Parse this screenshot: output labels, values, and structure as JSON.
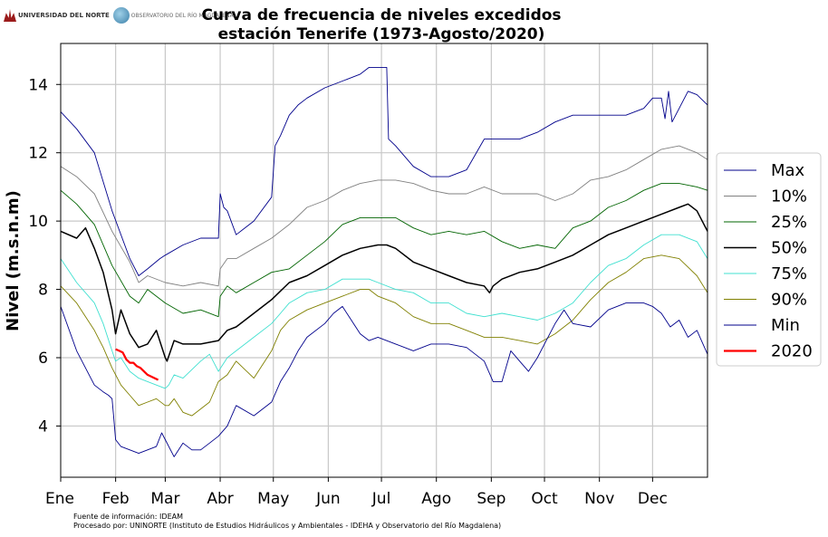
{
  "logos": {
    "university": "UNIVERSIDAD DEL NORTE",
    "observatory": "OBSERVATORIO DEL RÍO MAGDALENA"
  },
  "footnote": {
    "line1": "Fuente de información: IDEAM",
    "line2": "Procesado por: UNINORTE (Instituto de Estudios Hidráulicos y Ambientales - IDEHA y Observatorio del Río Magdalena)"
  },
  "chart_data": {
    "type": "line",
    "title": "Curva de frecuencia de niveles excedidos",
    "subtitle": "estación Tenerife (1973-Agosto/2020)",
    "xlabel": "",
    "ylabel": "Nivel (m.s.n.m)",
    "x_unit": "day of year",
    "xlim": [
      1,
      366
    ],
    "ylim": [
      2.5,
      15.2
    ],
    "xticks": [
      {
        "label": "Ene",
        "x": 1
      },
      {
        "label": "Feb",
        "x": 32
      },
      {
        "label": "Mar",
        "x": 60
      },
      {
        "label": "Abr",
        "x": 91
      },
      {
        "label": "May",
        "x": 121
      },
      {
        "label": "Jun",
        "x": 152
      },
      {
        "label": "Jul",
        "x": 182
      },
      {
        "label": "Ago",
        "x": 213
      },
      {
        "label": "Sep",
        "x": 244
      },
      {
        "label": "Oct",
        "x": 274
      },
      {
        "label": "Nov",
        "x": 305
      },
      {
        "label": "Dec",
        "x": 335
      }
    ],
    "yticks": [
      4,
      6,
      8,
      10,
      12,
      14
    ],
    "grid": true,
    "legend_position": "right",
    "series": [
      {
        "name": "Max",
        "color": "#00008b",
        "x": [
          1,
          10,
          20,
          30,
          40,
          45,
          50,
          57,
          60,
          70,
          80,
          90,
          91,
          93,
          95,
          100,
          110,
          120,
          122,
          125,
          130,
          135,
          140,
          150,
          160,
          170,
          175,
          180,
          185,
          186,
          190,
          200,
          210,
          220,
          230,
          240,
          250,
          260,
          270,
          280,
          290,
          300,
          310,
          320,
          330,
          335,
          340,
          342,
          344,
          346,
          350,
          355,
          360,
          366
        ],
        "values": [
          13.2,
          12.7,
          12.0,
          10.3,
          8.9,
          8.4,
          8.6,
          8.9,
          9.0,
          9.3,
          9.5,
          9.5,
          10.8,
          10.4,
          10.3,
          9.6,
          10.0,
          10.7,
          12.2,
          12.5,
          13.1,
          13.4,
          13.6,
          13.9,
          14.1,
          14.3,
          14.5,
          14.5,
          14.5,
          12.4,
          12.2,
          11.6,
          11.3,
          11.3,
          11.5,
          12.4,
          12.4,
          12.4,
          12.6,
          12.9,
          13.1,
          13.1,
          13.1,
          13.1,
          13.3,
          13.6,
          13.6,
          13.0,
          13.8,
          12.9,
          13.3,
          13.8,
          13.7,
          13.4
        ]
      },
      {
        "name": "10%",
        "color": "#808080",
        "x": [
          1,
          10,
          20,
          30,
          40,
          45,
          50,
          60,
          70,
          80,
          90,
          91,
          95,
          100,
          110,
          120,
          130,
          140,
          150,
          160,
          170,
          180,
          190,
          200,
          210,
          220,
          230,
          240,
          250,
          260,
          270,
          280,
          290,
          300,
          310,
          320,
          330,
          340,
          350,
          360,
          366
        ],
        "values": [
          11.6,
          11.3,
          10.8,
          9.7,
          8.8,
          8.2,
          8.4,
          8.2,
          8.1,
          8.2,
          8.1,
          8.6,
          8.9,
          8.9,
          9.2,
          9.5,
          9.9,
          10.4,
          10.6,
          10.9,
          11.1,
          11.2,
          11.2,
          11.1,
          10.9,
          10.8,
          10.8,
          11.0,
          10.8,
          10.8,
          10.8,
          10.6,
          10.8,
          11.2,
          11.3,
          11.5,
          11.8,
          12.1,
          12.2,
          12.0,
          11.8
        ]
      },
      {
        "name": "25%",
        "color": "#006400",
        "x": [
          1,
          10,
          20,
          30,
          40,
          45,
          50,
          55,
          60,
          70,
          80,
          90,
          91,
          95,
          100,
          110,
          120,
          130,
          140,
          150,
          160,
          170,
          180,
          190,
          200,
          210,
          220,
          230,
          240,
          250,
          260,
          270,
          280,
          290,
          300,
          310,
          320,
          330,
          340,
          350,
          360,
          366
        ],
        "values": [
          10.9,
          10.5,
          9.9,
          8.7,
          7.8,
          7.6,
          8.0,
          7.8,
          7.6,
          7.3,
          7.4,
          7.2,
          7.8,
          8.1,
          7.9,
          8.2,
          8.5,
          8.6,
          9.0,
          9.4,
          9.9,
          10.1,
          10.1,
          10.1,
          9.8,
          9.6,
          9.7,
          9.6,
          9.7,
          9.4,
          9.2,
          9.3,
          9.2,
          9.8,
          10.0,
          10.4,
          10.6,
          10.9,
          11.1,
          11.1,
          11.0,
          10.9
        ]
      },
      {
        "name": "50%",
        "color": "#000000",
        "x": [
          1,
          10,
          15,
          20,
          25,
          30,
          32,
          35,
          40,
          45,
          50,
          55,
          60,
          61,
          65,
          70,
          80,
          90,
          95,
          100,
          110,
          120,
          130,
          140,
          150,
          160,
          170,
          180,
          185,
          190,
          200,
          210,
          220,
          230,
          240,
          243,
          245,
          250,
          260,
          270,
          280,
          290,
          300,
          310,
          320,
          330,
          340,
          350,
          355,
          360,
          366
        ],
        "values": [
          9.7,
          9.5,
          9.8,
          9.2,
          8.5,
          7.4,
          6.7,
          7.4,
          6.7,
          6.3,
          6.4,
          6.8,
          6.0,
          5.9,
          6.5,
          6.4,
          6.4,
          6.5,
          6.8,
          6.9,
          7.3,
          7.7,
          8.2,
          8.4,
          8.7,
          9.0,
          9.2,
          9.3,
          9.3,
          9.2,
          8.8,
          8.6,
          8.4,
          8.2,
          8.1,
          7.9,
          8.1,
          8.3,
          8.5,
          8.6,
          8.8,
          9.0,
          9.3,
          9.6,
          9.8,
          10.0,
          10.2,
          10.4,
          10.5,
          10.3,
          9.7
        ]
      },
      {
        "name": "75%",
        "color": "#40e0d0",
        "x": [
          1,
          10,
          20,
          25,
          30,
          32,
          35,
          40,
          45,
          50,
          55,
          60,
          62,
          65,
          70,
          80,
          85,
          90,
          95,
          100,
          110,
          120,
          125,
          130,
          140,
          150,
          160,
          170,
          175,
          180,
          190,
          200,
          210,
          220,
          230,
          240,
          250,
          260,
          270,
          280,
          290,
          300,
          310,
          320,
          330,
          340,
          350,
          360,
          366
        ],
        "values": [
          8.9,
          8.2,
          7.6,
          7.0,
          6.2,
          5.9,
          6.0,
          5.6,
          5.4,
          5.3,
          5.2,
          5.1,
          5.2,
          5.5,
          5.4,
          5.9,
          6.1,
          5.6,
          6.0,
          6.2,
          6.6,
          7.0,
          7.3,
          7.6,
          7.9,
          8.0,
          8.3,
          8.3,
          8.3,
          8.2,
          8.0,
          7.9,
          7.6,
          7.6,
          7.3,
          7.2,
          7.3,
          7.2,
          7.1,
          7.3,
          7.6,
          8.2,
          8.7,
          8.9,
          9.3,
          9.6,
          9.6,
          9.4,
          8.9
        ]
      },
      {
        "name": "90%",
        "color": "#808000",
        "x": [
          1,
          10,
          20,
          25,
          30,
          35,
          40,
          45,
          50,
          55,
          60,
          62,
          65,
          70,
          75,
          80,
          85,
          90,
          95,
          100,
          110,
          120,
          125,
          130,
          140,
          150,
          160,
          170,
          175,
          180,
          190,
          200,
          210,
          220,
          230,
          240,
          250,
          260,
          270,
          280,
          290,
          300,
          310,
          320,
          330,
          340,
          350,
          360,
          366
        ],
        "values": [
          8.1,
          7.6,
          6.8,
          6.3,
          5.7,
          5.2,
          4.9,
          4.6,
          4.7,
          4.8,
          4.6,
          4.6,
          4.8,
          4.4,
          4.3,
          4.5,
          4.7,
          5.3,
          5.5,
          5.9,
          5.4,
          6.2,
          6.8,
          7.1,
          7.4,
          7.6,
          7.8,
          8.0,
          8.0,
          7.8,
          7.6,
          7.2,
          7.0,
          7.0,
          6.8,
          6.6,
          6.6,
          6.5,
          6.4,
          6.7,
          7.1,
          7.7,
          8.2,
          8.5,
          8.9,
          9.0,
          8.9,
          8.4,
          7.9
        ]
      },
      {
        "name": "Min",
        "color": "#00008b",
        "x": [
          1,
          10,
          20,
          25,
          28,
          30,
          31,
          32,
          35,
          40,
          45,
          50,
          55,
          58,
          60,
          65,
          70,
          75,
          80,
          85,
          90,
          95,
          100,
          110,
          120,
          125,
          130,
          135,
          140,
          150,
          155,
          160,
          165,
          170,
          175,
          180,
          190,
          200,
          210,
          220,
          230,
          240,
          245,
          250,
          255,
          260,
          265,
          270,
          275,
          280,
          285,
          290,
          300,
          310,
          320,
          330,
          335,
          340,
          345,
          350,
          355,
          360,
          366
        ],
        "values": [
          7.5,
          6.2,
          5.2,
          5.0,
          4.9,
          4.8,
          4.2,
          3.6,
          3.4,
          3.3,
          3.2,
          3.3,
          3.4,
          3.8,
          3.6,
          3.1,
          3.5,
          3.3,
          3.3,
          3.5,
          3.7,
          4.0,
          4.6,
          4.3,
          4.7,
          5.3,
          5.7,
          6.2,
          6.6,
          7.0,
          7.3,
          7.5,
          7.1,
          6.7,
          6.5,
          6.6,
          6.4,
          6.2,
          6.4,
          6.4,
          6.3,
          5.9,
          5.3,
          5.3,
          6.2,
          5.9,
          5.6,
          6.0,
          6.5,
          7.0,
          7.4,
          7.0,
          6.9,
          7.4,
          7.6,
          7.6,
          7.5,
          7.3,
          6.9,
          7.1,
          6.6,
          6.8,
          6.1
        ]
      },
      {
        "name": "2020",
        "color": "#ff0000",
        "x": [
          32,
          34,
          36,
          38,
          40,
          42,
          44,
          46,
          48,
          50,
          52,
          54,
          56
        ],
        "values": [
          6.25,
          6.2,
          6.15,
          5.95,
          5.85,
          5.85,
          5.75,
          5.7,
          5.6,
          5.5,
          5.45,
          5.4,
          5.35
        ]
      }
    ]
  }
}
